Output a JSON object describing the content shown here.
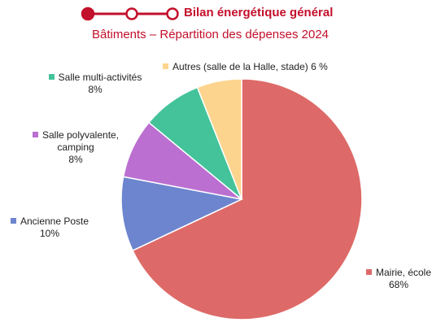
{
  "chart_data": {
    "type": "pie",
    "title": "Bilan énergétique général",
    "subtitle": "Bâtiments – Répartition des dépenses 2024",
    "categories": [
      "Mairie, école",
      "Ancienne Poste",
      "Salle polyvalente, camping",
      "Salle multi-activités",
      "Autres (salle de la Halle, stade)"
    ],
    "values": [
      68,
      10,
      8,
      8,
      6
    ],
    "value_labels": [
      "68%",
      "10%",
      "8%",
      "8%",
      "6 %"
    ],
    "colors": [
      "#dd6a68",
      "#6d85ce",
      "#bb6fd0",
      "#44c39a",
      "#fdd48e"
    ]
  }
}
